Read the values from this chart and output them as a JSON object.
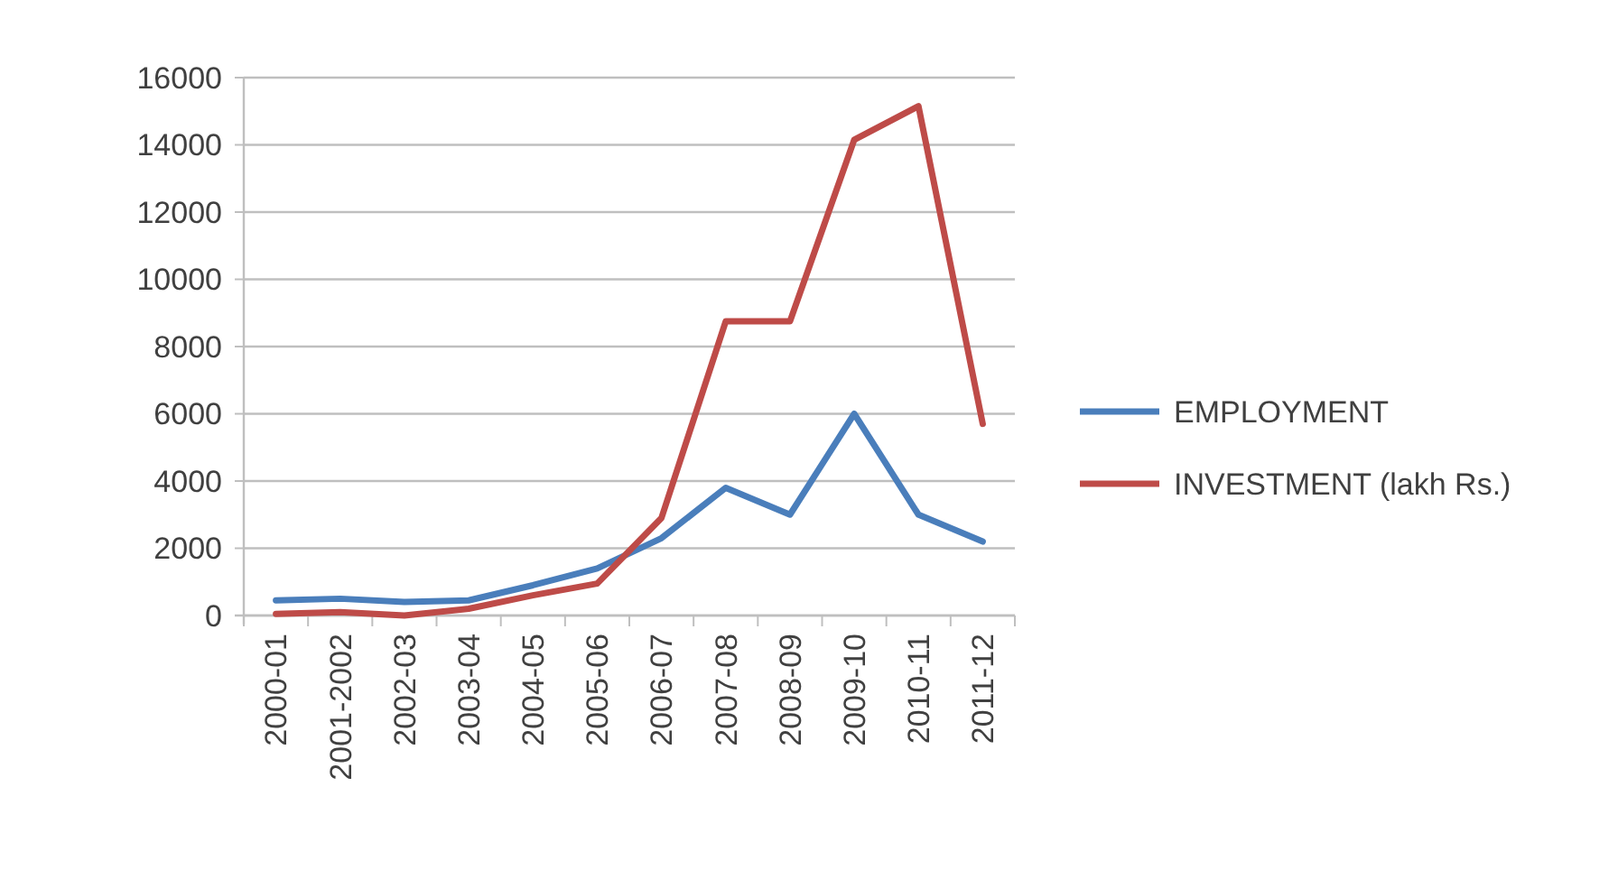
{
  "chart_data": {
    "type": "line",
    "categories": [
      "2000-01",
      "2001-2002",
      "2002-03",
      "2003-04",
      "2004-05",
      "2005-06",
      "2006-07",
      "2007-08",
      "2008-09",
      "2009-10",
      "2010-11",
      "2011-12"
    ],
    "series": [
      {
        "name": "EMPLOYMENT",
        "color": "#4a7ebb",
        "values": [
          450,
          500,
          400,
          450,
          900,
          1400,
          2300,
          3800,
          3000,
          6000,
          3000,
          2200
        ]
      },
      {
        "name": "INVESTMENT (lakh Rs.)",
        "color": "#be4b48",
        "values": [
          50,
          100,
          0,
          200,
          600,
          950,
          2900,
          8750,
          8750,
          14150,
          15150,
          5700
        ]
      }
    ],
    "ylim": [
      0,
      16000
    ],
    "yticks": [
      0,
      2000,
      4000,
      6000,
      8000,
      10000,
      12000,
      14000,
      16000
    ],
    "grid": "y",
    "legend": "right",
    "marker": "none",
    "line_style": "solid"
  }
}
